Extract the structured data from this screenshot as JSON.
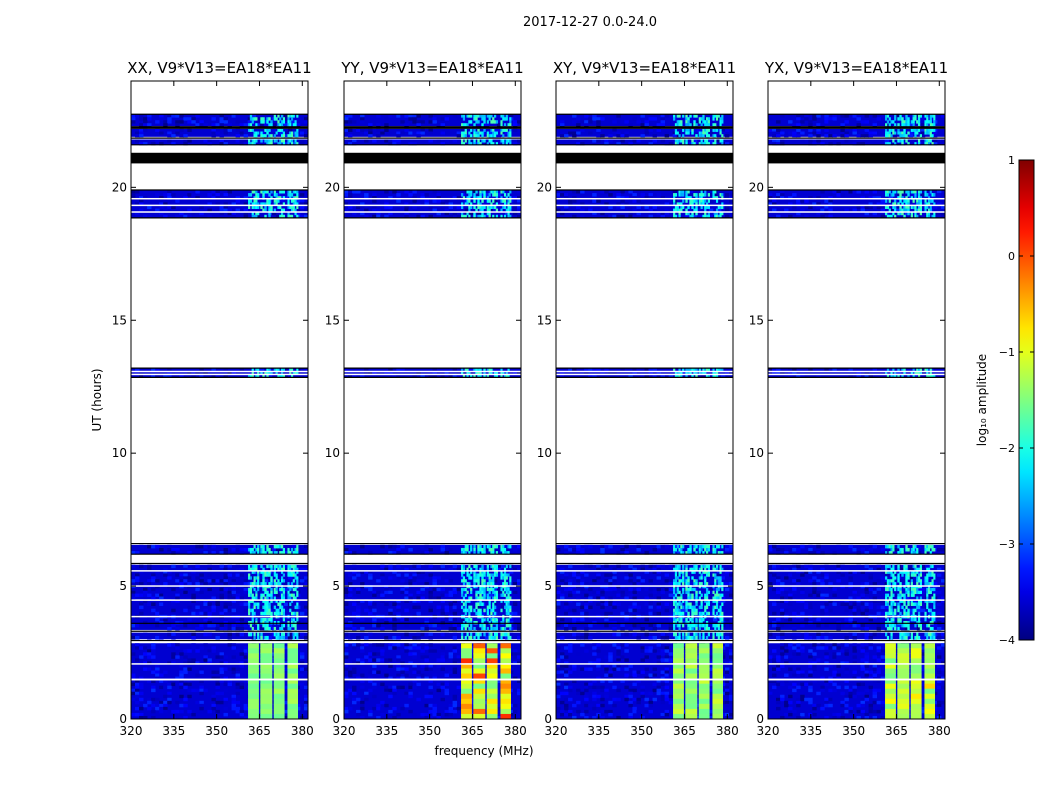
{
  "suptitle": "2017-12-27 0.0-24.0",
  "xlabel": "frequency (MHz)",
  "ylabel": "UT (hours)",
  "colorbar_label": "log₁₀ amplitude",
  "colors": {
    "background": "#ffffff",
    "flagged_black": "#000000",
    "axis": "#000000"
  },
  "chart_data": {
    "type": "heatmap",
    "description_note": "dynamic spectrum, four polarization panels sharing axes",
    "x": {
      "label": "frequency (MHz)",
      "range": [
        320,
        382
      ],
      "ticks": [
        320,
        335,
        350,
        365,
        380
      ]
    },
    "y": {
      "label": "UT (hours)",
      "range": [
        0,
        24
      ],
      "ticks": [
        0,
        5,
        10,
        15,
        20
      ]
    },
    "colorbar": {
      "label": "log₁₀ amplitude",
      "range": [
        -4,
        1
      ],
      "ticks": [
        -4,
        -3,
        -2,
        -1,
        0,
        1
      ],
      "colormap": "jet"
    },
    "panels": [
      {
        "title": "XX, V9*V13=EA18*EA11",
        "rfi_peak_log_amp": -1.2
      },
      {
        "title": "YY, V9*V13=EA18*EA11",
        "rfi_peak_log_amp": 0.3
      },
      {
        "title": "XY, V9*V13=EA18*EA11",
        "rfi_peak_log_amp": -1.0
      },
      {
        "title": "YX, V9*V13=EA18*EA11",
        "rfi_peak_log_amp": -0.6
      }
    ],
    "rfi_channel_bands_mhz": [
      [
        361,
        364.8
      ],
      [
        365.3,
        369.5
      ],
      [
        370.0,
        373.8
      ],
      [
        374.8,
        378.5
      ]
    ],
    "data_time_blocks_hours": [
      [
        0,
        2.85
      ],
      [
        3.0,
        3.25
      ],
      [
        3.35,
        3.8
      ],
      [
        3.8,
        4.5
      ],
      [
        4.5,
        5.8
      ],
      [
        6.2,
        6.55
      ],
      [
        12.85,
        13.2
      ],
      [
        18.85,
        19.9
      ],
      [
        21.6,
        21.8
      ],
      [
        21.9,
        22.2
      ],
      [
        22.3,
        22.75
      ]
    ],
    "white_gaps_hours": [
      [
        1.45,
        1.52
      ],
      [
        2.05,
        2.1
      ],
      [
        3.28,
        3.33
      ],
      [
        3.85,
        3.88
      ],
      [
        4.45,
        4.5
      ],
      [
        5.0,
        5.03
      ],
      [
        5.55,
        5.6
      ],
      [
        12.95,
        12.99
      ],
      [
        13.07,
        13.1
      ],
      [
        19.05,
        19.1
      ],
      [
        19.3,
        19.35
      ],
      [
        19.55,
        19.6
      ]
    ],
    "black_flag_bands_hours": [
      [
        20.9,
        21.3
      ],
      [
        22.2,
        22.3
      ]
    ],
    "thin_black_lines_hours": [
      2.95,
      3.3,
      3.6,
      6.6,
      6.2,
      5.85,
      13.2,
      12.85,
      19.9,
      18.85,
      21.6,
      22.75,
      21.85
    ]
  }
}
